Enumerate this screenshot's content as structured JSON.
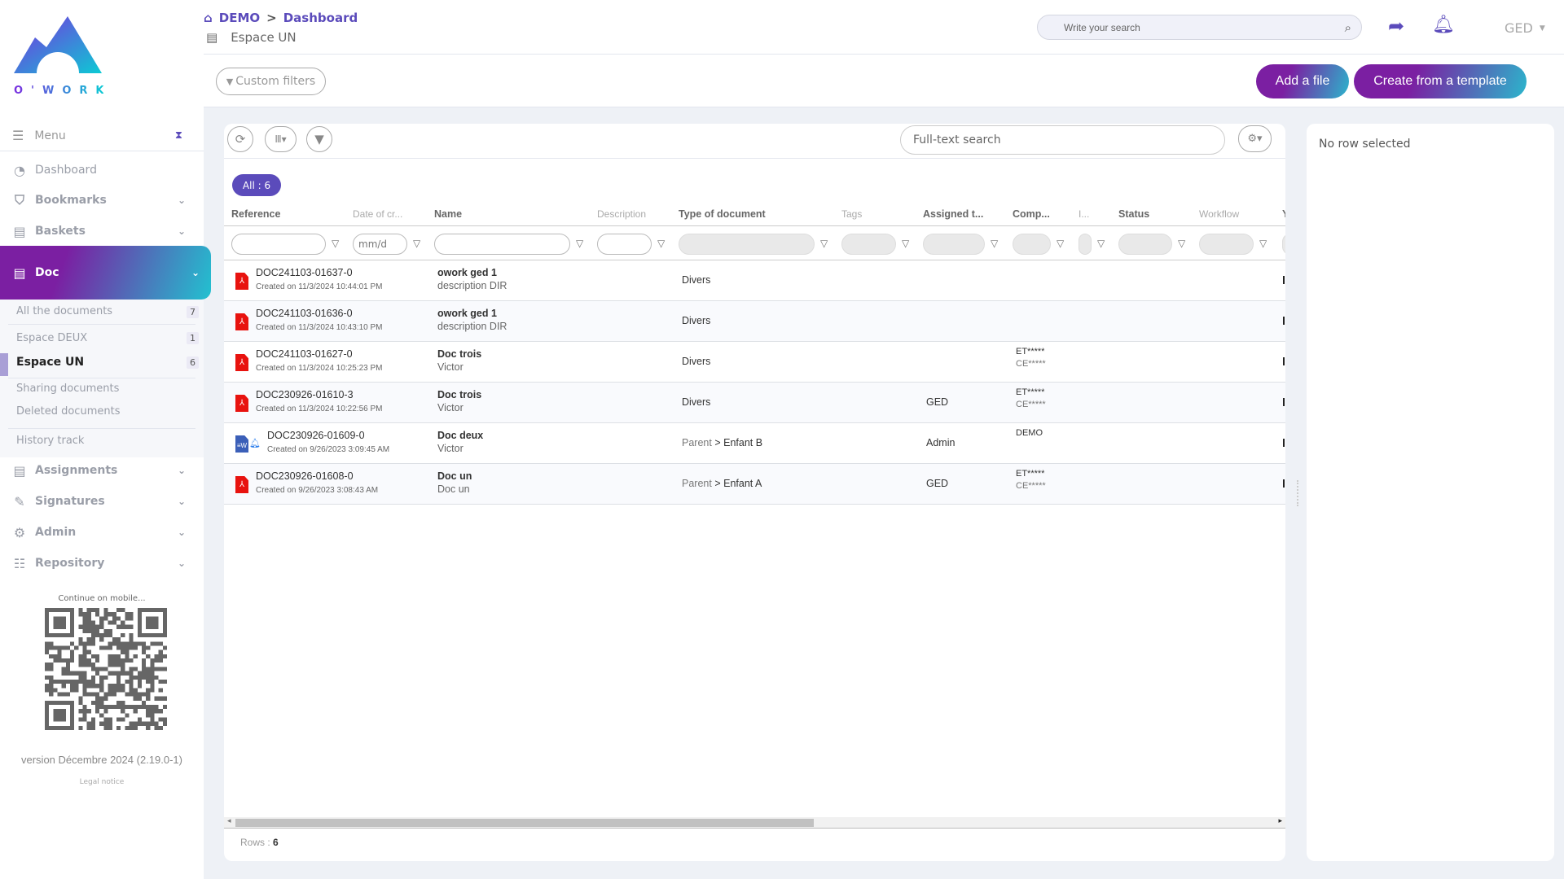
{
  "brand": {
    "name": "O'WORK",
    "accent": "#5b4bbb",
    "gradient_start": "#7b1fa2",
    "gradient_end": "#2bb6cc"
  },
  "breadcrumb": {
    "home": "DEMO",
    "separator": ">",
    "current": "Dashboard",
    "space": "Espace UN"
  },
  "header": {
    "search_placeholder": "Write your search",
    "user_menu": "GED",
    "custom_filters": "Custom filters",
    "add_file": "Add a file",
    "create_template": "Create from a template"
  },
  "sidebar": {
    "menu": "Menu",
    "items": [
      {
        "label": "Dashboard",
        "icon": "gauge-icon"
      },
      {
        "label": "Bookmarks",
        "icon": "bookmark-icon"
      },
      {
        "label": "Baskets",
        "icon": "book-icon"
      },
      {
        "label": "Doc",
        "icon": "book-icon",
        "active": true
      },
      {
        "label": "Assignments",
        "icon": "book-icon"
      },
      {
        "label": "Signatures",
        "icon": "signature-icon"
      },
      {
        "label": "Admin",
        "icon": "gear-icon"
      },
      {
        "label": "Repository",
        "icon": "list-icon"
      }
    ],
    "doc_sub": [
      {
        "label": "All the documents",
        "count": "7"
      },
      {
        "label": "Espace DEUX",
        "count": "1"
      },
      {
        "label": "Espace UN",
        "count": "6",
        "active": true
      },
      {
        "label": "Sharing documents"
      },
      {
        "label": "Deleted documents"
      },
      {
        "label": "History track"
      }
    ],
    "continue_mobile": "Continue on mobile...",
    "version": "version Décembre 2024 (2.19.0-1)",
    "legal": "Legal notice"
  },
  "grid": {
    "fulltext_placeholder": "Full-text search",
    "all_badge": "All : 6",
    "date_placeholder": "mm/d",
    "columns": [
      "Reference",
      "Date of cr...",
      "Name",
      "Description",
      "Type of document",
      "Tags",
      "Assigned t...",
      "Comp...",
      "I...",
      "Status",
      "Workflow",
      "Y"
    ],
    "rows": [
      {
        "icon": "pdf",
        "ref": "DOC241103-01637-0",
        "created": "Created on 11/3/2024 10:44:01 PM",
        "name": "owork ged 1",
        "sub": "description DIR",
        "type_parent": "",
        "type": "Divers",
        "assigned": "",
        "comp1": "",
        "comp2": ""
      },
      {
        "icon": "pdf",
        "ref": "DOC241103-01636-0",
        "created": "Created on 11/3/2024 10:43:10 PM",
        "name": "owork ged 1",
        "sub": "description DIR",
        "type_parent": "",
        "type": "Divers",
        "assigned": "",
        "comp1": "",
        "comp2": ""
      },
      {
        "icon": "pdf",
        "ref": "DOC241103-01627-0",
        "created": "Created on 11/3/2024 10:25:23 PM",
        "name": "Doc trois",
        "sub": "Victor",
        "type_parent": "",
        "type": "Divers",
        "assigned": "",
        "comp1": "ET*****",
        "comp2": "CE*****"
      },
      {
        "icon": "pdf",
        "ref": "DOC230926-01610-3",
        "created": "Created on 11/3/2024 10:22:56 PM",
        "name": "Doc trois",
        "sub": "Victor",
        "type_parent": "",
        "type": "Divers",
        "assigned": "GED",
        "comp1": "ET*****",
        "comp2": "CE*****"
      },
      {
        "icon": "word",
        "bell": true,
        "ref": "DOC230926-01609-0",
        "created": "Created on 9/26/2023 3:09:45 AM",
        "name": "Doc deux",
        "sub": "Victor",
        "type_parent": "Parent",
        "type": "> Enfant B",
        "assigned": "Admin",
        "comp1": "DEMO",
        "comp2": ""
      },
      {
        "icon": "pdf",
        "ref": "DOC230926-01608-0",
        "created": "Created on 9/26/2023 3:08:43 AM",
        "name": "Doc un",
        "sub": "Doc un",
        "type_parent": "Parent",
        "type": "> Enfant A",
        "assigned": "GED",
        "comp1": "ET*****",
        "comp2": "CE*****"
      }
    ],
    "rows_label": "Rows :",
    "rows_count": "6"
  },
  "detail": {
    "empty": "No row selected"
  }
}
